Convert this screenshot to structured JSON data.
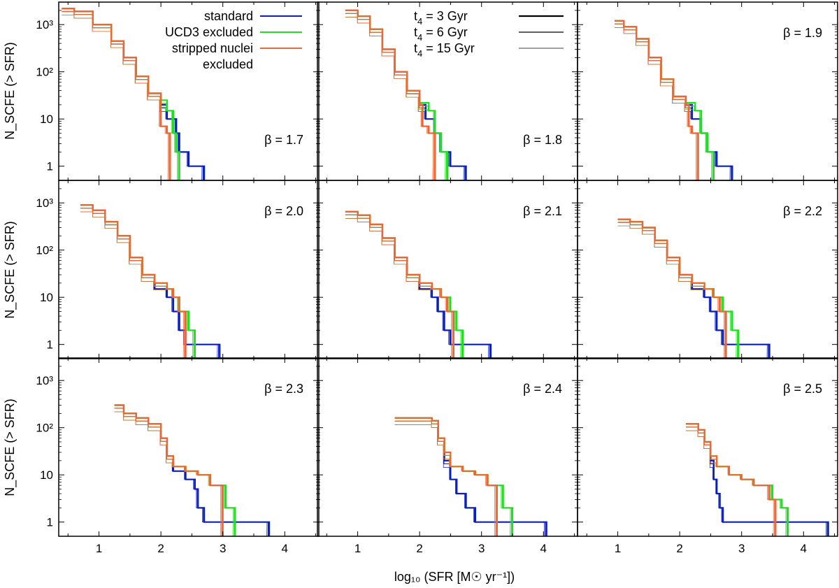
{
  "chart_data": {
    "type": "line",
    "layout": "3x3 grid, shared axes",
    "step_lines": true,
    "xlabel": "log₁₀ (SFR [M☉ yr⁻¹])",
    "ylabel": "N_SCFE (> SFR)",
    "x_ticks": [
      1,
      2,
      3,
      4
    ],
    "x_tick_labels": [
      "1",
      "2",
      "3",
      "4"
    ],
    "y_ticks": [
      1,
      10,
      100,
      1000
    ],
    "y_tick_labels": [
      "1",
      "10",
      "10²",
      "10³"
    ],
    "xlim": [
      0.35,
      4.55
    ],
    "ylim": [
      0.5,
      3000
    ],
    "yscale": "log",
    "grid": false,
    "colors": {
      "standard": "#0b1fbd",
      "ucd3": "#22dd22",
      "nuclei": "#ee6633",
      "frame": "#000000"
    },
    "legend_models": {
      "position": "top-right of panel 1",
      "entries": [
        {
          "lines": [
            "standard"
          ],
          "color": "#0b1fbd"
        },
        {
          "lines": [
            "UCD3 excluded"
          ],
          "color": "#22dd22"
        },
        {
          "lines": [
            "stripped nuclei",
            "excluded"
          ],
          "color": "#ee6633"
        }
      ]
    },
    "legend_times": {
      "position": "top of panel 2",
      "entries": [
        {
          "prefix": "t",
          "sub": "4",
          "text": " =   3 Gyr",
          "width": 2.2
        },
        {
          "prefix": "t",
          "sub": "4",
          "text": " =   6 Gyr",
          "width": 1.3
        },
        {
          "prefix": "t",
          "sub": "4",
          "text": " = 15 Gyr",
          "width": 0.7
        }
      ]
    },
    "panels": [
      {
        "beta": "β = 1.7",
        "series": [
          {
            "name": "standard",
            "x": [
              0.4,
              0.6,
              0.9,
              1.2,
              1.4,
              1.6,
              1.8,
              2.0,
              2.1,
              2.25,
              2.3,
              2.45,
              2.5,
              2.7
            ],
            "y": [
              2200,
              1900,
              1000,
              450,
              200,
              80,
              35,
              20,
              10,
              5,
              2,
              1,
              1,
              1
            ]
          },
          {
            "name": "UCD3 excluded",
            "x": [
              0.4,
              0.6,
              0.9,
              1.2,
              1.4,
              1.6,
              1.8,
              2.0,
              2.1,
              2.2,
              2.25,
              2.3
            ],
            "y": [
              2200,
              1900,
              1000,
              450,
              200,
              80,
              35,
              25,
              15,
              5,
              2,
              1
            ]
          },
          {
            "name": "stripped nuclei excluded",
            "x": [
              0.4,
              0.6,
              0.9,
              1.2,
              1.4,
              1.6,
              1.8,
              2.0,
              2.0,
              2.1,
              2.15
            ],
            "y": [
              2200,
              1900,
              1000,
              450,
              200,
              80,
              35,
              20,
              7,
              5,
              1
            ]
          }
        ]
      },
      {
        "beta": "β = 1.8",
        "series": [
          {
            "name": "standard",
            "x": [
              0.8,
              1.0,
              1.2,
              1.4,
              1.6,
              1.8,
              2.0,
              2.1,
              2.25,
              2.35,
              2.5,
              2.75
            ],
            "y": [
              2000,
              1500,
              800,
              300,
              100,
              40,
              20,
              10,
              5,
              2,
              1,
              1
            ]
          },
          {
            "name": "UCD3 excluded",
            "x": [
              0.8,
              1.0,
              1.2,
              1.4,
              1.6,
              1.8,
              2.0,
              2.15,
              2.25,
              2.35,
              2.45
            ],
            "y": [
              2000,
              1500,
              800,
              300,
              100,
              40,
              22,
              15,
              5,
              2,
              1
            ]
          },
          {
            "name": "stripped nuclei excluded",
            "x": [
              0.8,
              1.0,
              1.2,
              1.4,
              1.6,
              1.8,
              2.0,
              2.05,
              2.15,
              2.25
            ],
            "y": [
              2000,
              1500,
              800,
              300,
              100,
              40,
              20,
              7,
              5,
              1
            ]
          }
        ]
      },
      {
        "beta": "β = 1.9",
        "series": [
          {
            "name": "standard",
            "x": [
              0.95,
              1.1,
              1.3,
              1.5,
              1.7,
              1.9,
              2.1,
              2.2,
              2.35,
              2.45,
              2.6,
              2.85
            ],
            "y": [
              1200,
              900,
              500,
              200,
              70,
              30,
              20,
              10,
              5,
              2,
              1,
              1
            ]
          },
          {
            "name": "UCD3 excluded",
            "x": [
              0.95,
              1.1,
              1.3,
              1.5,
              1.7,
              1.9,
              2.1,
              2.25,
              2.35,
              2.45,
              2.55
            ],
            "y": [
              1200,
              900,
              500,
              200,
              70,
              30,
              22,
              15,
              5,
              2,
              1
            ]
          },
          {
            "name": "stripped nuclei excluded",
            "x": [
              0.95,
              1.1,
              1.3,
              1.5,
              1.7,
              1.9,
              2.1,
              2.15,
              2.2,
              2.3
            ],
            "y": [
              1200,
              900,
              500,
              200,
              70,
              30,
              20,
              7,
              5,
              1
            ]
          }
        ]
      },
      {
        "beta": "β = 2.0",
        "series": [
          {
            "name": "standard",
            "x": [
              0.7,
              0.9,
              1.1,
              1.3,
              1.5,
              1.7,
              1.9,
              2.1,
              2.2,
              2.3,
              2.4,
              2.6,
              2.95
            ],
            "y": [
              900,
              700,
              400,
              200,
              70,
              30,
              15,
              10,
              5,
              2,
              1,
              1,
              1
            ]
          },
          {
            "name": "UCD3 excluded",
            "x": [
              0.7,
              0.9,
              1.1,
              1.3,
              1.5,
              1.7,
              1.9,
              2.1,
              2.2,
              2.3,
              2.45,
              2.55
            ],
            "y": [
              900,
              700,
              400,
              200,
              70,
              30,
              20,
              15,
              10,
              5,
              2,
              1
            ]
          },
          {
            "name": "stripped nuclei excluded",
            "x": [
              0.7,
              0.9,
              1.1,
              1.3,
              1.5,
              1.7,
              1.9,
              2.1,
              2.2,
              2.3,
              2.4
            ],
            "y": [
              900,
              700,
              400,
              200,
              70,
              30,
              20,
              15,
              10,
              5,
              1
            ]
          }
        ]
      },
      {
        "beta": "β = 2.1",
        "series": [
          {
            "name": "standard",
            "x": [
              0.8,
              1.0,
              1.2,
              1.4,
              1.6,
              1.8,
              2.0,
              2.2,
              2.3,
              2.4,
              2.5,
              2.6,
              3.15
            ],
            "y": [
              650,
              550,
              350,
              180,
              70,
              30,
              15,
              10,
              5,
              2,
              1,
              1,
              1
            ]
          },
          {
            "name": "UCD3 excluded",
            "x": [
              0.8,
              1.0,
              1.2,
              1.4,
              1.6,
              1.8,
              2.0,
              2.2,
              2.35,
              2.5,
              2.6,
              2.7
            ],
            "y": [
              650,
              550,
              350,
              180,
              70,
              30,
              20,
              15,
              10,
              5,
              2,
              1
            ]
          },
          {
            "name": "stripped nuclei excluded",
            "x": [
              0.8,
              1.0,
              1.2,
              1.4,
              1.6,
              1.8,
              2.0,
              2.2,
              2.35,
              2.45,
              2.55
            ],
            "y": [
              650,
              550,
              350,
              180,
              70,
              30,
              20,
              15,
              10,
              5,
              1
            ]
          }
        ]
      },
      {
        "beta": "β = 2.2",
        "series": [
          {
            "name": "standard",
            "x": [
              1.0,
              1.2,
              1.4,
              1.6,
              1.8,
              2.0,
              2.2,
              2.4,
              2.5,
              2.6,
              2.7,
              2.8,
              3.45
            ],
            "y": [
              450,
              400,
              300,
              160,
              70,
              30,
              15,
              10,
              5,
              2,
              1,
              1,
              1
            ]
          },
          {
            "name": "UCD3 excluded",
            "x": [
              1.0,
              1.2,
              1.4,
              1.6,
              1.8,
              2.0,
              2.2,
              2.4,
              2.55,
              2.7,
              2.85,
              2.95
            ],
            "y": [
              450,
              400,
              300,
              160,
              70,
              30,
              20,
              15,
              10,
              5,
              2,
              1
            ]
          },
          {
            "name": "stripped nuclei excluded",
            "x": [
              1.0,
              1.2,
              1.4,
              1.6,
              1.8,
              2.0,
              2.2,
              2.4,
              2.55,
              2.65,
              2.75
            ],
            "y": [
              450,
              400,
              300,
              160,
              70,
              30,
              20,
              15,
              10,
              5,
              1
            ]
          }
        ]
      },
      {
        "beta": "β = 2.3",
        "series": [
          {
            "name": "standard",
            "x": [
              1.25,
              1.4,
              1.6,
              1.8,
              2.0,
              2.1,
              2.2,
              2.4,
              2.55,
              2.6,
              2.7,
              3.0,
              3.75
            ],
            "y": [
              300,
              200,
              160,
              120,
              60,
              25,
              12,
              8,
              5,
              2,
              1,
              1,
              1
            ]
          },
          {
            "name": "UCD3 excluded",
            "x": [
              1.25,
              1.4,
              1.6,
              1.8,
              2.0,
              2.1,
              2.2,
              2.4,
              2.6,
              2.8,
              3.05,
              3.2
            ],
            "y": [
              300,
              200,
              160,
              120,
              60,
              25,
              15,
              12,
              10,
              6,
              2,
              1
            ]
          },
          {
            "name": "stripped nuclei excluded",
            "x": [
              1.25,
              1.4,
              1.6,
              1.8,
              2.0,
              2.1,
              2.2,
              2.4,
              2.6,
              2.8,
              3.0
            ],
            "y": [
              300,
              200,
              160,
              120,
              60,
              25,
              15,
              12,
              10,
              6,
              1
            ]
          }
        ]
      },
      {
        "beta": "β = 2.4",
        "series": [
          {
            "name": "standard",
            "x": [
              1.6,
              1.8,
              2.0,
              2.2,
              2.3,
              2.4,
              2.5,
              2.6,
              2.75,
              2.9,
              3.0,
              3.2,
              4.05
            ],
            "y": [
              160,
              160,
              160,
              140,
              60,
              20,
              8,
              4,
              2,
              1,
              1,
              1,
              1
            ]
          },
          {
            "name": "UCD3 excluded",
            "x": [
              1.6,
              1.8,
              2.0,
              2.2,
              2.3,
              2.4,
              2.5,
              2.7,
              2.9,
              3.1,
              3.35,
              3.5
            ],
            "y": [
              160,
              160,
              160,
              140,
              60,
              30,
              15,
              12,
              10,
              6,
              2,
              1
            ]
          },
          {
            "name": "stripped nuclei excluded",
            "x": [
              1.6,
              1.8,
              2.0,
              2.2,
              2.3,
              2.4,
              2.5,
              2.7,
              2.9,
              3.1,
              3.25
            ],
            "y": [
              160,
              160,
              160,
              140,
              60,
              30,
              15,
              12,
              10,
              6,
              1
            ]
          }
        ]
      },
      {
        "beta": "β = 2.5",
        "series": [
          {
            "name": "standard",
            "x": [
              2.1,
              2.2,
              2.3,
              2.4,
              2.5,
              2.55,
              2.6,
              2.65,
              2.7,
              2.8,
              3.0,
              3.5,
              4.4
            ],
            "y": [
              120,
              120,
              90,
              50,
              20,
              8,
              4,
              2,
              1,
              1,
              1,
              1,
              1
            ]
          },
          {
            "name": "UCD3 excluded",
            "x": [
              2.1,
              2.2,
              2.3,
              2.4,
              2.5,
              2.6,
              2.8,
              3.0,
              3.2,
              3.5,
              3.65,
              3.75
            ],
            "y": [
              120,
              120,
              90,
              50,
              25,
              15,
              10,
              8,
              6,
              3,
              2,
              1
            ]
          },
          {
            "name": "stripped nuclei excluded",
            "x": [
              2.1,
              2.2,
              2.3,
              2.4,
              2.5,
              2.6,
              2.8,
              3.0,
              3.2,
              3.45,
              3.55
            ],
            "y": [
              120,
              120,
              90,
              50,
              25,
              15,
              10,
              8,
              6,
              3,
              1
            ]
          }
        ]
      }
    ]
  }
}
